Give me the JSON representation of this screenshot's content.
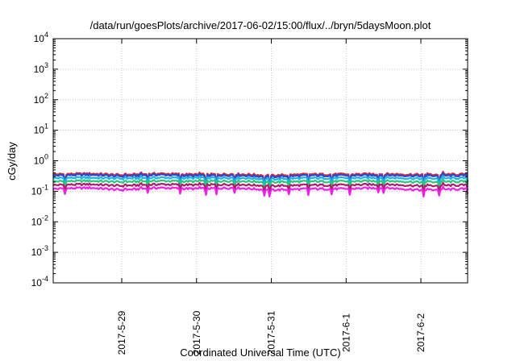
{
  "chart_data": {
    "type": "line",
    "title": "/data/run/goesPlots/archive/2017-06-02/15:00/flux/../bryn/5daysMoon.plot",
    "xlabel": "Coordinated Universal Time (UTC)",
    "ylabel": "cGy/day",
    "yscale": "log",
    "ylim": [
      0.0001,
      10000
    ],
    "y_ticks": [
      {
        "base": "10",
        "exp": "-4",
        "value": 0.0001
      },
      {
        "base": "10",
        "exp": "-3",
        "value": 0.001
      },
      {
        "base": "10",
        "exp": "-2",
        "value": 0.01
      },
      {
        "base": "10",
        "exp": "-1",
        "value": 0.1
      },
      {
        "base": "10",
        "exp": "0",
        "value": 1
      },
      {
        "base": "10",
        "exp": "1",
        "value": 10
      },
      {
        "base": "10",
        "exp": "2",
        "value": 100
      },
      {
        "base": "10",
        "exp": "3",
        "value": 1000
      },
      {
        "base": "10",
        "exp": "4",
        "value": 10000
      }
    ],
    "xlim": [
      "2017-05-28T02:00",
      "2017-06-02T15:00"
    ],
    "x_ticks": [
      {
        "label": "2017-5-29",
        "value": "2017-05-29T00:00"
      },
      {
        "label": "2017-5-30",
        "value": "2017-05-30T00:00"
      },
      {
        "label": "2017-5-31",
        "value": "2017-05-31T00:00"
      },
      {
        "label": "2017-6-1",
        "value": "2017-06-01T00:00"
      },
      {
        "label": "2017-6-2",
        "value": "2017-06-02T00:00"
      }
    ],
    "grid": true,
    "legend": "none",
    "series": [
      {
        "color": "#e02828",
        "base": 0.36,
        "dip_depth": 0.7,
        "points": [
          [
            "2017-05-28T02:00",
            0.36
          ],
          [
            "2017-05-28T14:00",
            0.38
          ],
          [
            "2017-05-29T00:00",
            0.34
          ],
          [
            "2017-05-29T12:00",
            0.38
          ],
          [
            "2017-05-30T00:00",
            0.35
          ],
          [
            "2017-05-30T12:00",
            0.37
          ],
          [
            "2017-05-31T00:00",
            0.33
          ],
          [
            "2017-05-31T12:00",
            0.36
          ],
          [
            "2017-06-01T00:00",
            0.36
          ],
          [
            "2017-06-01T12:00",
            0.37
          ],
          [
            "2017-06-02T00:00",
            0.35
          ],
          [
            "2017-06-02T15:00",
            0.36
          ]
        ]
      },
      {
        "color": "#2a48d8",
        "base": 0.33,
        "dip_depth": 0.65,
        "points": [
          [
            "2017-05-28T02:00",
            0.33
          ],
          [
            "2017-05-28T14:00",
            0.35
          ],
          [
            "2017-05-29T00:00",
            0.31
          ],
          [
            "2017-05-29T12:00",
            0.35
          ],
          [
            "2017-05-30T00:00",
            0.32
          ],
          [
            "2017-05-30T12:00",
            0.34
          ],
          [
            "2017-05-31T00:00",
            0.3
          ],
          [
            "2017-05-31T12:00",
            0.33
          ],
          [
            "2017-06-01T00:00",
            0.33
          ],
          [
            "2017-06-01T12:00",
            0.34
          ],
          [
            "2017-06-02T00:00",
            0.32
          ],
          [
            "2017-06-02T15:00",
            0.33
          ]
        ]
      },
      {
        "color": "#19b4e6",
        "base": 0.27,
        "dip_depth": 0.6,
        "points": [
          [
            "2017-05-28T02:00",
            0.27
          ],
          [
            "2017-05-28T14:00",
            0.28
          ],
          [
            "2017-05-29T00:00",
            0.26
          ],
          [
            "2017-05-29T12:00",
            0.28
          ],
          [
            "2017-05-30T00:00",
            0.27
          ],
          [
            "2017-05-30T12:00",
            0.28
          ],
          [
            "2017-05-31T00:00",
            0.25
          ],
          [
            "2017-05-31T12:00",
            0.27
          ],
          [
            "2017-06-01T00:00",
            0.27
          ],
          [
            "2017-06-01T12:00",
            0.28
          ],
          [
            "2017-06-02T00:00",
            0.26
          ],
          [
            "2017-06-02T15:00",
            0.27
          ]
        ]
      },
      {
        "color": "#28c878",
        "base": 0.21,
        "dip_depth": 0.55,
        "points": [
          [
            "2017-05-28T02:00",
            0.21
          ],
          [
            "2017-05-28T14:00",
            0.22
          ],
          [
            "2017-05-29T00:00",
            0.2
          ],
          [
            "2017-05-29T12:00",
            0.22
          ],
          [
            "2017-05-30T00:00",
            0.21
          ],
          [
            "2017-05-30T12:00",
            0.22
          ],
          [
            "2017-05-31T00:00",
            0.2
          ],
          [
            "2017-05-31T12:00",
            0.21
          ],
          [
            "2017-06-01T00:00",
            0.21
          ],
          [
            "2017-06-01T12:00",
            0.22
          ],
          [
            "2017-06-02T00:00",
            0.2
          ],
          [
            "2017-06-02T15:00",
            0.21
          ]
        ]
      },
      {
        "color": "#b01a6a",
        "base": 0.16,
        "dip_depth": 0.5,
        "points": [
          [
            "2017-05-28T02:00",
            0.16
          ],
          [
            "2017-05-28T14:00",
            0.17
          ],
          [
            "2017-05-29T00:00",
            0.15
          ],
          [
            "2017-05-29T12:00",
            0.17
          ],
          [
            "2017-05-30T00:00",
            0.16
          ],
          [
            "2017-05-30T12:00",
            0.17
          ],
          [
            "2017-05-31T00:00",
            0.15
          ],
          [
            "2017-05-31T12:00",
            0.16
          ],
          [
            "2017-06-01T00:00",
            0.16
          ],
          [
            "2017-06-01T12:00",
            0.17
          ],
          [
            "2017-06-02T00:00",
            0.15
          ],
          [
            "2017-06-02T15:00",
            0.16
          ]
        ]
      },
      {
        "color": "#f01ef0",
        "base": 0.12,
        "dip_depth": 0.45,
        "points": [
          [
            "2017-05-28T02:00",
            0.12
          ],
          [
            "2017-05-28T14:00",
            0.13
          ],
          [
            "2017-05-29T00:00",
            0.11
          ],
          [
            "2017-05-29T12:00",
            0.13
          ],
          [
            "2017-05-30T00:00",
            0.12
          ],
          [
            "2017-05-30T12:00",
            0.13
          ],
          [
            "2017-05-31T00:00",
            0.11
          ],
          [
            "2017-05-31T12:00",
            0.12
          ],
          [
            "2017-06-01T00:00",
            0.12
          ],
          [
            "2017-06-01T12:00",
            0.13
          ],
          [
            "2017-06-02T00:00",
            0.11
          ],
          [
            "2017-06-02T15:00",
            0.12
          ]
        ]
      }
    ]
  }
}
